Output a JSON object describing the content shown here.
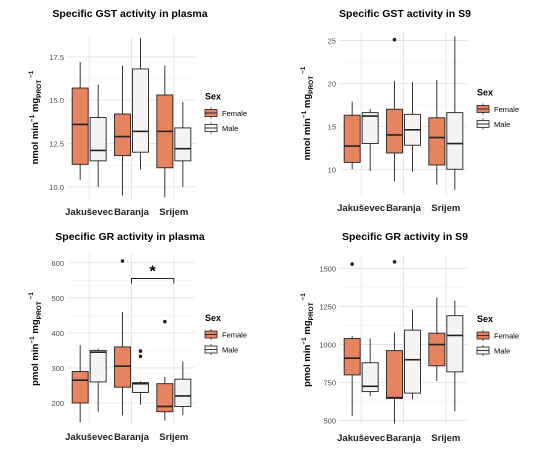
{
  "colors": {
    "female": "#e8835f",
    "male": "#f4f4f4",
    "box_stroke": "#222222",
    "grid_major": "#e0e0e0",
    "grid_minor": "#f0f0f0",
    "axis_text": "#4d4d4d",
    "text": "#000000"
  },
  "chart_data": [
    {
      "type": "boxplot",
      "title": "Specific GST activity in plasma",
      "ylabel": {
        "base": "nmol min",
        "sup1": "−1",
        "mid": " mg",
        "sub": "PROT",
        "sup2": " −1"
      },
      "categories": [
        "Jakuševec",
        "Baranja",
        "Srijem"
      ],
      "ylim": [
        9.3,
        18.7
      ],
      "yticks": [
        10.0,
        12.5,
        15.0,
        17.5
      ],
      "ytick_labels": [
        "10.0",
        "12.5",
        "15.0",
        "17.5"
      ],
      "legend": {
        "title": "Sex",
        "entries": [
          "Female",
          "Male"
        ],
        "position": "right"
      },
      "series": [
        {
          "name": "Female",
          "boxes": [
            {
              "category": "Jakuševec",
              "min": 10.4,
              "q1": 11.3,
              "median": 13.6,
              "q3": 15.7,
              "max": 17.2,
              "outliers": []
            },
            {
              "category": "Baranja",
              "min": 9.5,
              "q1": 11.8,
              "median": 12.9,
              "q3": 14.2,
              "max": 17.0,
              "outliers": []
            },
            {
              "category": "Srijem",
              "min": 9.4,
              "q1": 11.1,
              "median": 13.2,
              "q3": 15.3,
              "max": 17.0,
              "outliers": []
            }
          ]
        },
        {
          "name": "Male",
          "boxes": [
            {
              "category": "Jakuševec",
              "min": 10.0,
              "q1": 11.5,
              "median": 12.1,
              "q3": 14.0,
              "max": 15.9,
              "outliers": []
            },
            {
              "category": "Baranja",
              "min": 11.0,
              "q1": 12.0,
              "median": 13.2,
              "q3": 16.8,
              "max": 18.6,
              "outliers": []
            },
            {
              "category": "Srijem",
              "min": 10.0,
              "q1": 11.5,
              "median": 12.2,
              "q3": 13.4,
              "max": 14.9,
              "outliers": []
            }
          ]
        }
      ],
      "annotations": []
    },
    {
      "type": "boxplot",
      "title": "Specific GST activity in S9",
      "ylabel": {
        "base": "nmol min",
        "sup1": "−1",
        "mid": " mg",
        "sub": "PROT",
        "sup2": " −1"
      },
      "categories": [
        "Jakuševec",
        "Baranja",
        "Srijem"
      ],
      "ylim": [
        7.0,
        26.0
      ],
      "yticks": [
        10,
        15,
        20,
        25
      ],
      "ytick_labels": [
        "10",
        "15",
        "20",
        "25"
      ],
      "legend": {
        "title": "Sex",
        "entries": [
          "Female",
          "Male"
        ],
        "position": "right"
      },
      "series": [
        {
          "name": "Female",
          "boxes": [
            {
              "category": "Jakuševec",
              "min": 10.0,
              "q1": 10.8,
              "median": 12.7,
              "q3": 16.3,
              "max": 17.9,
              "outliers": []
            },
            {
              "category": "Baranja",
              "min": 8.6,
              "q1": 11.9,
              "median": 14.0,
              "q3": 17.0,
              "max": 20.3,
              "outliers": [
                25.1
              ]
            },
            {
              "category": "Srijem",
              "min": 8.2,
              "q1": 10.5,
              "median": 13.7,
              "q3": 16.0,
              "max": 20.4,
              "outliers": []
            }
          ]
        },
        {
          "name": "Male",
          "boxes": [
            {
              "category": "Jakuševec",
              "min": 9.8,
              "q1": 13.0,
              "median": 16.2,
              "q3": 16.6,
              "max": 17.0,
              "outliers": []
            },
            {
              "category": "Baranja",
              "min": 9.7,
              "q1": 12.8,
              "median": 14.6,
              "q3": 16.4,
              "max": 20.2,
              "outliers": []
            },
            {
              "category": "Srijem",
              "min": 7.6,
              "q1": 10.0,
              "median": 13.0,
              "q3": 16.6,
              "max": 25.5,
              "outliers": []
            }
          ]
        }
      ],
      "annotations": []
    },
    {
      "type": "boxplot",
      "title": "Specific GR activity in plasma",
      "ylabel": {
        "base": "pmol min",
        "sup1": "−1",
        "mid": " mg",
        "sub": "PROT",
        "sup2": " −1"
      },
      "categories": [
        "Jakuševec",
        "Baranja",
        "Srijem"
      ],
      "ylim": [
        140,
        625
      ],
      "yticks": [
        200,
        300,
        400,
        500,
        600
      ],
      "ytick_labels": [
        "200",
        "300",
        "400",
        "500",
        "600"
      ],
      "legend": {
        "title": "Sex",
        "entries": [
          "Female",
          "Male"
        ],
        "position": "right"
      },
      "series": [
        {
          "name": "Female",
          "boxes": [
            {
              "category": "Jakuševec",
              "min": 145,
              "q1": 200,
              "median": 265,
              "q3": 290,
              "max": 365,
              "outliers": []
            },
            {
              "category": "Baranja",
              "min": 165,
              "q1": 245,
              "median": 305,
              "q3": 360,
              "max": 460,
              "outliers": [
                605
              ]
            },
            {
              "category": "Srijem",
              "min": 150,
              "q1": 175,
              "median": 190,
              "q3": 255,
              "max": 275,
              "outliers": [
                432
              ]
            }
          ]
        },
        {
          "name": "Male",
          "boxes": [
            {
              "category": "Jakuševec",
              "min": 175,
              "q1": 260,
              "median": 345,
              "q3": 350,
              "max": 355,
              "outliers": []
            },
            {
              "category": "Baranja",
              "min": 195,
              "q1": 230,
              "median": 255,
              "q3": 258,
              "max": 262,
              "outliers": [
                348,
                333
              ]
            },
            {
              "category": "Srijem",
              "min": 165,
              "q1": 190,
              "median": 220,
              "q3": 268,
              "max": 318,
              "outliers": []
            }
          ]
        }
      ],
      "annotations": [
        {
          "type": "significance",
          "label": "*",
          "from_category": "Baranja",
          "to_category": "Srijem",
          "y": 555
        }
      ]
    },
    {
      "type": "boxplot",
      "title": "Specific GR activity in S9",
      "ylabel": {
        "base": "pmol min",
        "sup1": "−1",
        "mid": " mg",
        "sub": "PROT",
        "sup2": " −1"
      },
      "categories": [
        "Jakuševec",
        "Baranja",
        "Srijem"
      ],
      "ylim": [
        470,
        1590
      ],
      "yticks": [
        500,
        750,
        1000,
        1250,
        1500
      ],
      "ytick_labels": [
        "500",
        "750",
        "1000",
        "1250",
        "1500"
      ],
      "legend": {
        "title": "Sex",
        "entries": [
          "Female",
          "Male"
        ],
        "position": "right"
      },
      "series": [
        {
          "name": "Female",
          "boxes": [
            {
              "category": "Jakuševec",
              "min": 530,
              "q1": 800,
              "median": 910,
              "q3": 1040,
              "max": 1055,
              "outliers": [
                1530
              ]
            },
            {
              "category": "Baranja",
              "min": 480,
              "q1": 645,
              "median": 650,
              "q3": 960,
              "max": 1080,
              "outliers": [
                1545
              ]
            },
            {
              "category": "Srijem",
              "min": 760,
              "q1": 860,
              "median": 1000,
              "q3": 1075,
              "max": 1310,
              "outliers": []
            }
          ]
        },
        {
          "name": "Male",
          "boxes": [
            {
              "category": "Jakuševec",
              "min": 660,
              "q1": 690,
              "median": 725,
              "q3": 880,
              "max": 1040,
              "outliers": []
            },
            {
              "category": "Baranja",
              "min": 640,
              "q1": 680,
              "median": 900,
              "q3": 1095,
              "max": 1230,
              "outliers": []
            },
            {
              "category": "Srijem",
              "min": 560,
              "q1": 820,
              "median": 1060,
              "q3": 1190,
              "max": 1290,
              "outliers": []
            }
          ]
        }
      ],
      "annotations": []
    }
  ]
}
